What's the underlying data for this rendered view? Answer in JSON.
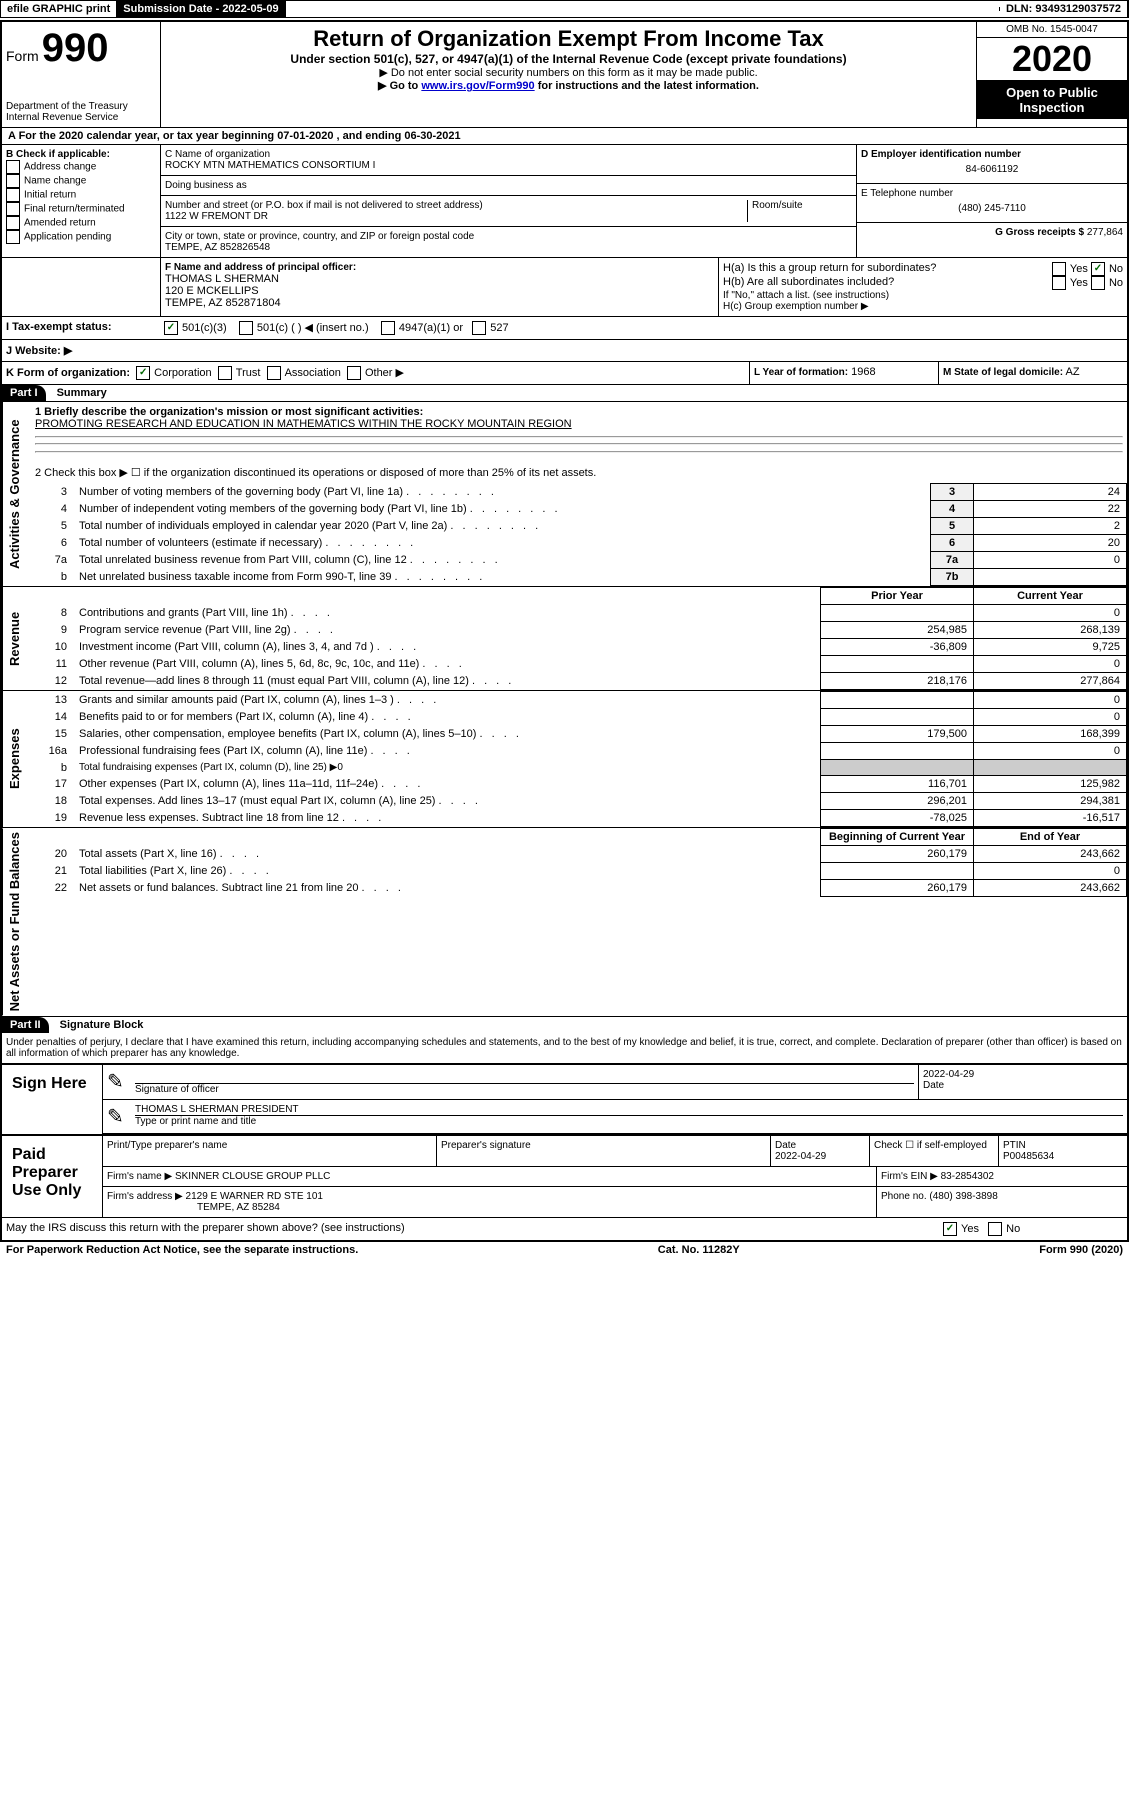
{
  "top_bar": {
    "efile": "efile GRAPHIC print",
    "submission_label": "Submission Date - 2022-05-09",
    "dln": "DLN: 93493129037572"
  },
  "header": {
    "form_word": "Form",
    "form_number": "990",
    "dept": "Department of the Treasury",
    "irs": "Internal Revenue Service",
    "title": "Return of Organization Exempt From Income Tax",
    "subtitle": "Under section 501(c), 527, or 4947(a)(1) of the Internal Revenue Code (except private foundations)",
    "note1": "▶ Do not enter social security numbers on this form as it may be made public.",
    "note2_pre": "▶ Go to ",
    "note2_link": "www.irs.gov/Form990",
    "note2_post": " for instructions and the latest information.",
    "omb": "OMB No. 1545-0047",
    "year": "2020",
    "open": "Open to Public Inspection"
  },
  "section_a": "A For the 2020 calendar year, or tax year beginning 07-01-2020   , and ending 06-30-2021",
  "col_b": {
    "label": "B Check if applicable:",
    "items": [
      "Address change",
      "Name change",
      "Initial return",
      "Final return/terminated",
      "Amended return",
      "Application pending"
    ]
  },
  "col_c": {
    "name_label": "C Name of organization",
    "name": "ROCKY MTN MATHEMATICS CONSORTIUM I",
    "dba_label": "Doing business as",
    "dba": "",
    "street_label": "Number and street (or P.O. box if mail is not delivered to street address)",
    "room_label": "Room/suite",
    "street": "1122 W FREMONT DR",
    "city_label": "City or town, state or province, country, and ZIP or foreign postal code",
    "city": "TEMPE, AZ  852826548"
  },
  "col_de": {
    "d_label": "D Employer identification number",
    "d_value": "84-6061192",
    "e_label": "E Telephone number",
    "e_value": "(480) 245-7110",
    "g_label": "G Gross receipts $",
    "g_value": "277,864"
  },
  "row_f": {
    "f_label": "F Name and address of principal officer:",
    "f_name": "THOMAS L SHERMAN",
    "f_addr1": "120 E MCKELLIPS",
    "f_addr2": "TEMPE, AZ  852871804",
    "ha_label": "H(a)  Is this a group return for subordinates?",
    "hb_label": "H(b)  Are all subordinates included?",
    "h_note": "If \"No,\" attach a list. (see instructions)",
    "hc_label": "H(c)  Group exemption number ▶",
    "yes": "Yes",
    "no": "No"
  },
  "row_i": {
    "label": "I    Tax-exempt status:",
    "opt1": "501(c)(3)",
    "opt2": "501(c) (  ) ◀ (insert no.)",
    "opt3": "4947(a)(1) or",
    "opt4": "527"
  },
  "row_j": {
    "label": "J   Website: ▶"
  },
  "row_k": {
    "label": "K Form of organization:",
    "opts": [
      "Corporation",
      "Trust",
      "Association",
      "Other ▶"
    ],
    "l_label": "L Year of formation:",
    "l_value": "1968",
    "m_label": "M State of legal domicile:",
    "m_value": "AZ"
  },
  "part1": {
    "header": "Part I",
    "title": "Summary",
    "q1_label": "1  Briefly describe the organization's mission or most significant activities:",
    "q1_value": "PROMOTING RESEARCH AND EDUCATION IN MATHEMATICS WITHIN THE ROCKY MOUNTAIN REGION",
    "q2": "2    Check this box ▶ ☐  if the organization discontinued its operations or disposed of more than 25% of its net assets.",
    "governance_label": "Activities & Governance",
    "revenue_label": "Revenue",
    "expenses_label": "Expenses",
    "netassets_label": "Net Assets or Fund Balances",
    "col_prior": "Prior Year",
    "col_current": "Current Year",
    "col_begin": "Beginning of Current Year",
    "col_end": "End of Year",
    "rows_gov": [
      {
        "num": "3",
        "desc": "Number of voting members of the governing body (Part VI, line 1a)",
        "id": "3",
        "val": "24"
      },
      {
        "num": "4",
        "desc": "Number of independent voting members of the governing body (Part VI, line 1b)",
        "id": "4",
        "val": "22"
      },
      {
        "num": "5",
        "desc": "Total number of individuals employed in calendar year 2020 (Part V, line 2a)",
        "id": "5",
        "val": "2"
      },
      {
        "num": "6",
        "desc": "Total number of volunteers (estimate if necessary)",
        "id": "6",
        "val": "20"
      },
      {
        "num": "7a",
        "desc": "Total unrelated business revenue from Part VIII, column (C), line 12",
        "id": "7a",
        "val": "0"
      },
      {
        "num": "b",
        "desc": "Net unrelated business taxable income from Form 990-T, line 39",
        "id": "7b",
        "val": ""
      }
    ],
    "rows_rev": [
      {
        "num": "8",
        "desc": "Contributions and grants (Part VIII, line 1h)",
        "prior": "",
        "curr": "0"
      },
      {
        "num": "9",
        "desc": "Program service revenue (Part VIII, line 2g)",
        "prior": "254,985",
        "curr": "268,139"
      },
      {
        "num": "10",
        "desc": "Investment income (Part VIII, column (A), lines 3, 4, and 7d )",
        "prior": "-36,809",
        "curr": "9,725"
      },
      {
        "num": "11",
        "desc": "Other revenue (Part VIII, column (A), lines 5, 6d, 8c, 9c, 10c, and 11e)",
        "prior": "",
        "curr": "0"
      },
      {
        "num": "12",
        "desc": "Total revenue—add lines 8 through 11 (must equal Part VIII, column (A), line 12)",
        "prior": "218,176",
        "curr": "277,864"
      }
    ],
    "rows_exp": [
      {
        "num": "13",
        "desc": "Grants and similar amounts paid (Part IX, column (A), lines 1–3 )",
        "prior": "",
        "curr": "0"
      },
      {
        "num": "14",
        "desc": "Benefits paid to or for members (Part IX, column (A), line 4)",
        "prior": "",
        "curr": "0"
      },
      {
        "num": "15",
        "desc": "Salaries, other compensation, employee benefits (Part IX, column (A), lines 5–10)",
        "prior": "179,500",
        "curr": "168,399"
      },
      {
        "num": "16a",
        "desc": "Professional fundraising fees (Part IX, column (A), line 11e)",
        "prior": "",
        "curr": "0"
      },
      {
        "num": "b",
        "desc": "Total fundraising expenses (Part IX, column (D), line 25) ▶0",
        "prior": "—",
        "curr": "—"
      },
      {
        "num": "17",
        "desc": "Other expenses (Part IX, column (A), lines 11a–11d, 11f–24e)",
        "prior": "116,701",
        "curr": "125,982"
      },
      {
        "num": "18",
        "desc": "Total expenses. Add lines 13–17 (must equal Part IX, column (A), line 25)",
        "prior": "296,201",
        "curr": "294,381"
      },
      {
        "num": "19",
        "desc": "Revenue less expenses. Subtract line 18 from line 12",
        "prior": "-78,025",
        "curr": "-16,517"
      }
    ],
    "rows_net": [
      {
        "num": "20",
        "desc": "Total assets (Part X, line 16)",
        "prior": "260,179",
        "curr": "243,662"
      },
      {
        "num": "21",
        "desc": "Total liabilities (Part X, line 26)",
        "prior": "",
        "curr": "0"
      },
      {
        "num": "22",
        "desc": "Net assets or fund balances. Subtract line 21 from line 20",
        "prior": "260,179",
        "curr": "243,662"
      }
    ]
  },
  "part2": {
    "header": "Part II",
    "title": "Signature Block",
    "perjury": "Under penalties of perjury, I declare that I have examined this return, including accompanying schedules and statements, and to the best of my knowledge and belief, it is true, correct, and complete. Declaration of preparer (other than officer) is based on all information of which preparer has any knowledge.",
    "sign_here": "Sign Here",
    "sig_officer": "Signature of officer",
    "date": "Date",
    "date_val": "2022-04-29",
    "officer_name": "THOMAS L SHERMAN  PRESIDENT",
    "type_name": "Type or print name and title",
    "paid_label": "Paid Preparer Use Only",
    "prep_name_label": "Print/Type preparer's name",
    "prep_sig_label": "Preparer's signature",
    "prep_date_label": "Date",
    "prep_date": "2022-04-29",
    "check_self": "Check ☐ if self-employed",
    "ptin_label": "PTIN",
    "ptin": "P00485634",
    "firm_name_label": "Firm's name    ▶",
    "firm_name": "SKINNER CLOUSE GROUP PLLC",
    "firm_ein_label": "Firm's EIN ▶",
    "firm_ein": "83-2854302",
    "firm_addr_label": "Firm's address ▶",
    "firm_addr1": "2129 E WARNER RD STE 101",
    "firm_addr2": "TEMPE, AZ  85284",
    "phone_label": "Phone no.",
    "phone": "(480) 398-3898",
    "discuss": "May the IRS discuss this return with the preparer shown above? (see instructions)"
  },
  "footer": {
    "left": "For Paperwork Reduction Act Notice, see the separate instructions.",
    "center": "Cat. No. 11282Y",
    "right": "Form 990 (2020)"
  }
}
